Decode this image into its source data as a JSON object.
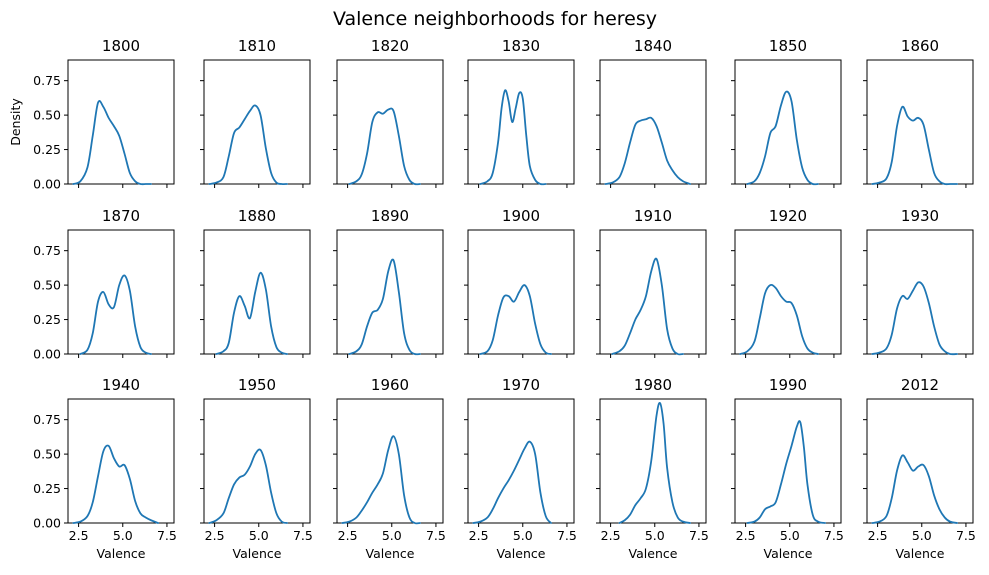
{
  "figure": {
    "title": "Valence neighborhoods for heresy"
  },
  "colors": {
    "line": "#1f77b4",
    "axis": "#000000",
    "background": "#ffffff"
  },
  "chart_data": {
    "type": "line",
    "title": "Valence neighborhoods for heresy",
    "xlabel": "Valence",
    "ylabel": "Density",
    "xlim": [
      1.9,
      7.9
    ],
    "ylim": [
      0,
      0.9
    ],
    "xticks": [
      2.5,
      5.0,
      7.5
    ],
    "xtick_labels": [
      "2.5",
      "5.0",
      "7.5"
    ],
    "yticks": [
      0.0,
      0.25,
      0.5,
      0.75
    ],
    "ytick_labels": [
      "0.00",
      "0.25",
      "0.50",
      "0.75"
    ],
    "grid": false,
    "layout": {
      "rows": 3,
      "cols": 7
    },
    "panels": [
      {
        "title": "1800",
        "x": [
          2.2,
          2.6,
          3.0,
          3.3,
          3.6,
          3.9,
          4.2,
          4.5,
          4.8,
          5.1,
          5.4,
          5.7,
          6.0,
          6.3,
          6.6
        ],
        "y": [
          0.0,
          0.02,
          0.12,
          0.35,
          0.59,
          0.56,
          0.48,
          0.42,
          0.35,
          0.22,
          0.08,
          0.02,
          0.0,
          0.0,
          0.0
        ]
      },
      {
        "title": "1810",
        "x": [
          2.2,
          2.6,
          3.0,
          3.3,
          3.6,
          3.9,
          4.2,
          4.5,
          4.8,
          5.1,
          5.4,
          5.7,
          6.0,
          6.3,
          6.6
        ],
        "y": [
          0.0,
          0.01,
          0.05,
          0.2,
          0.37,
          0.41,
          0.47,
          0.53,
          0.57,
          0.5,
          0.26,
          0.08,
          0.01,
          0.0,
          0.0
        ]
      },
      {
        "title": "1820",
        "x": [
          2.6,
          3.0,
          3.3,
          3.6,
          3.9,
          4.2,
          4.5,
          4.8,
          5.1,
          5.4,
          5.7,
          6.0,
          6.3,
          6.6
        ],
        "y": [
          0.0,
          0.02,
          0.07,
          0.22,
          0.45,
          0.52,
          0.51,
          0.54,
          0.53,
          0.35,
          0.13,
          0.03,
          0.0,
          0.0
        ]
      },
      {
        "title": "1830",
        "x": [
          2.6,
          3.0,
          3.3,
          3.6,
          3.8,
          4.0,
          4.2,
          4.4,
          4.6,
          4.8,
          5.0,
          5.2,
          5.4,
          5.7,
          6.0,
          6.3
        ],
        "y": [
          0.0,
          0.02,
          0.08,
          0.3,
          0.55,
          0.68,
          0.6,
          0.45,
          0.55,
          0.66,
          0.62,
          0.35,
          0.13,
          0.03,
          0.0,
          0.0
        ]
      },
      {
        "title": "1840",
        "x": [
          2.2,
          2.6,
          3.0,
          3.3,
          3.6,
          3.9,
          4.2,
          4.5,
          4.8,
          5.1,
          5.4,
          5.7,
          6.0,
          6.3,
          6.6,
          7.0
        ],
        "y": [
          0.0,
          0.01,
          0.05,
          0.15,
          0.3,
          0.43,
          0.46,
          0.47,
          0.48,
          0.42,
          0.3,
          0.17,
          0.1,
          0.05,
          0.02,
          0.0
        ]
      },
      {
        "title": "1850",
        "x": [
          2.6,
          3.0,
          3.3,
          3.6,
          3.9,
          4.2,
          4.5,
          4.8,
          5.1,
          5.4,
          5.7,
          6.0,
          6.3,
          6.6
        ],
        "y": [
          0.0,
          0.02,
          0.08,
          0.2,
          0.37,
          0.42,
          0.57,
          0.67,
          0.6,
          0.32,
          0.12,
          0.03,
          0.0,
          0.0
        ]
      },
      {
        "title": "1860",
        "x": [
          2.2,
          2.6,
          3.0,
          3.3,
          3.6,
          3.9,
          4.2,
          4.5,
          4.8,
          5.1,
          5.4,
          5.7,
          6.0,
          6.3,
          6.6,
          7.0
        ],
        "y": [
          0.0,
          0.01,
          0.04,
          0.16,
          0.42,
          0.56,
          0.49,
          0.46,
          0.48,
          0.43,
          0.25,
          0.08,
          0.02,
          0.0,
          0.0,
          0.0
        ]
      },
      {
        "title": "1870",
        "x": [
          2.6,
          3.0,
          3.3,
          3.6,
          3.9,
          4.2,
          4.5,
          4.8,
          5.1,
          5.4,
          5.7,
          6.0,
          6.3,
          6.6
        ],
        "y": [
          0.0,
          0.03,
          0.15,
          0.38,
          0.45,
          0.36,
          0.34,
          0.5,
          0.57,
          0.46,
          0.2,
          0.05,
          0.01,
          0.0
        ]
      },
      {
        "title": "1880",
        "x": [
          2.6,
          3.0,
          3.3,
          3.6,
          3.9,
          4.2,
          4.5,
          4.8,
          5.1,
          5.4,
          5.7,
          6.0,
          6.3,
          6.6
        ],
        "y": [
          0.0,
          0.02,
          0.08,
          0.3,
          0.42,
          0.35,
          0.26,
          0.45,
          0.59,
          0.47,
          0.2,
          0.05,
          0.01,
          0.0
        ]
      },
      {
        "title": "1890",
        "x": [
          2.6,
          3.0,
          3.3,
          3.6,
          3.9,
          4.2,
          4.5,
          4.8,
          5.1,
          5.4,
          5.7,
          6.0,
          6.3,
          6.6
        ],
        "y": [
          0.0,
          0.02,
          0.07,
          0.2,
          0.3,
          0.32,
          0.4,
          0.6,
          0.68,
          0.45,
          0.15,
          0.03,
          0.0,
          0.0
        ]
      },
      {
        "title": "1900",
        "x": [
          2.6,
          3.0,
          3.3,
          3.6,
          3.9,
          4.2,
          4.5,
          4.8,
          5.1,
          5.4,
          5.7,
          6.0,
          6.3,
          6.6
        ],
        "y": [
          0.0,
          0.02,
          0.1,
          0.28,
          0.41,
          0.42,
          0.38,
          0.45,
          0.5,
          0.42,
          0.22,
          0.07,
          0.01,
          0.0
        ]
      },
      {
        "title": "1910",
        "x": [
          2.6,
          3.0,
          3.3,
          3.6,
          3.9,
          4.2,
          4.5,
          4.8,
          5.1,
          5.4,
          5.7,
          6.0,
          6.3,
          6.6
        ],
        "y": [
          0.0,
          0.02,
          0.06,
          0.15,
          0.25,
          0.32,
          0.42,
          0.6,
          0.69,
          0.5,
          0.18,
          0.04,
          0.0,
          0.0
        ]
      },
      {
        "title": "1920",
        "x": [
          2.2,
          2.6,
          3.0,
          3.3,
          3.6,
          3.9,
          4.2,
          4.5,
          4.8,
          5.1,
          5.4,
          5.7,
          6.0,
          6.3,
          6.6
        ],
        "y": [
          0.0,
          0.02,
          0.09,
          0.26,
          0.44,
          0.5,
          0.48,
          0.42,
          0.38,
          0.37,
          0.28,
          0.13,
          0.04,
          0.01,
          0.0
        ]
      },
      {
        "title": "1930",
        "x": [
          2.2,
          2.6,
          3.0,
          3.3,
          3.6,
          3.9,
          4.2,
          4.5,
          4.8,
          5.1,
          5.4,
          5.7,
          6.0,
          6.3,
          6.6,
          7.0
        ],
        "y": [
          0.0,
          0.01,
          0.04,
          0.14,
          0.33,
          0.42,
          0.4,
          0.46,
          0.52,
          0.49,
          0.37,
          0.2,
          0.07,
          0.02,
          0.0,
          0.0
        ]
      },
      {
        "title": "1940",
        "x": [
          2.2,
          2.6,
          3.0,
          3.3,
          3.6,
          3.9,
          4.2,
          4.5,
          4.8,
          5.1,
          5.4,
          5.7,
          6.0,
          6.3,
          6.6,
          7.0
        ],
        "y": [
          0.0,
          0.01,
          0.05,
          0.15,
          0.34,
          0.52,
          0.56,
          0.47,
          0.41,
          0.42,
          0.32,
          0.16,
          0.07,
          0.04,
          0.02,
          0.0
        ]
      },
      {
        "title": "1950",
        "x": [
          2.2,
          2.6,
          3.0,
          3.3,
          3.6,
          3.9,
          4.2,
          4.5,
          4.8,
          5.1,
          5.4,
          5.7,
          6.0,
          6.3,
          6.6
        ],
        "y": [
          0.0,
          0.02,
          0.07,
          0.18,
          0.28,
          0.33,
          0.35,
          0.41,
          0.5,
          0.53,
          0.42,
          0.22,
          0.07,
          0.01,
          0.0
        ]
      },
      {
        "title": "1960",
        "x": [
          2.2,
          2.6,
          3.0,
          3.3,
          3.6,
          3.9,
          4.2,
          4.5,
          4.8,
          5.1,
          5.4,
          5.7,
          6.0,
          6.3,
          6.6
        ],
        "y": [
          0.0,
          0.01,
          0.04,
          0.09,
          0.15,
          0.22,
          0.28,
          0.36,
          0.53,
          0.63,
          0.5,
          0.2,
          0.04,
          0.0,
          0.0
        ]
      },
      {
        "title": "1970",
        "x": [
          2.2,
          2.6,
          3.0,
          3.3,
          3.6,
          3.9,
          4.2,
          4.5,
          4.8,
          5.1,
          5.4,
          5.7,
          6.0,
          6.3,
          6.6
        ],
        "y": [
          0.0,
          0.01,
          0.04,
          0.1,
          0.18,
          0.25,
          0.31,
          0.38,
          0.46,
          0.54,
          0.59,
          0.5,
          0.22,
          0.05,
          0.0
        ]
      },
      {
        "title": "1980",
        "x": [
          3.0,
          3.3,
          3.6,
          3.9,
          4.2,
          4.5,
          4.8,
          5.1,
          5.3,
          5.5,
          5.7,
          6.0,
          6.3,
          6.6,
          7.0
        ],
        "y": [
          0.0,
          0.02,
          0.06,
          0.13,
          0.18,
          0.25,
          0.45,
          0.78,
          0.87,
          0.72,
          0.4,
          0.15,
          0.04,
          0.01,
          0.0
        ]
      },
      {
        "title": "1990",
        "x": [
          2.6,
          3.0,
          3.3,
          3.6,
          3.9,
          4.2,
          4.5,
          4.8,
          5.1,
          5.4,
          5.6,
          5.8,
          6.0,
          6.3,
          6.6,
          7.0
        ],
        "y": [
          0.0,
          0.01,
          0.04,
          0.1,
          0.12,
          0.15,
          0.28,
          0.43,
          0.56,
          0.7,
          0.73,
          0.55,
          0.28,
          0.06,
          0.01,
          0.0
        ]
      },
      {
        "title": "2012",
        "x": [
          2.2,
          2.6,
          3.0,
          3.3,
          3.6,
          3.9,
          4.2,
          4.5,
          4.8,
          5.1,
          5.4,
          5.7,
          6.0,
          6.3,
          6.6,
          7.0
        ],
        "y": [
          0.0,
          0.01,
          0.05,
          0.18,
          0.38,
          0.49,
          0.44,
          0.38,
          0.41,
          0.42,
          0.34,
          0.2,
          0.1,
          0.04,
          0.01,
          0.0
        ]
      }
    ]
  }
}
